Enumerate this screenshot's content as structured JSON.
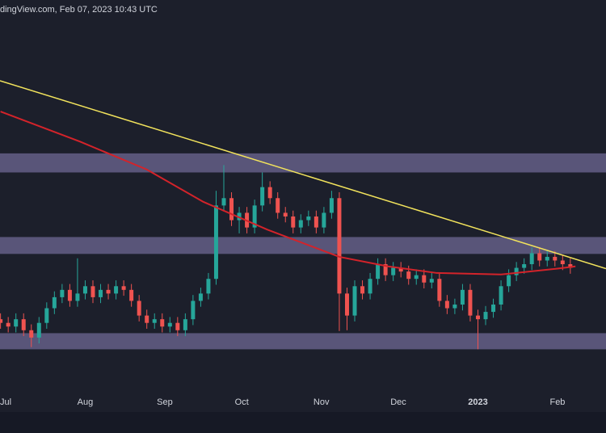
{
  "header": {
    "text": "dingView.com, Feb 07, 2023 10:43 UTC"
  },
  "chart_data": {
    "type": "candlestick",
    "background": "#1c1f2b",
    "up_color": "#26a69a",
    "down_color": "#ef5350",
    "xlim": [
      -2.2,
      233.9
    ],
    "ylim": [
      0.245,
      0.78
    ],
    "xticks": [
      {
        "value": 0,
        "label": "Jul"
      },
      {
        "value": 31,
        "label": "Aug"
      },
      {
        "value": 62,
        "label": "Sep"
      },
      {
        "value": 92,
        "label": "Oct"
      },
      {
        "value": 123,
        "label": "Nov"
      },
      {
        "value": 153,
        "label": "Dec"
      },
      {
        "value": 184,
        "label": "2023"
      },
      {
        "value": 215,
        "label": "Feb"
      }
    ],
    "x": [
      -2,
      1,
      4,
      7,
      10,
      13,
      16,
      19,
      22,
      25,
      28,
      31,
      34,
      37,
      40,
      43,
      46,
      49,
      52,
      55,
      58,
      61,
      64,
      67,
      70,
      73,
      76,
      79,
      82,
      85,
      88,
      91,
      94,
      97,
      100,
      103,
      106,
      109,
      112,
      115,
      118,
      121,
      124,
      127,
      130,
      133,
      136,
      139,
      142,
      145,
      148,
      151,
      154,
      157,
      160,
      163,
      166,
      169,
      172,
      175,
      178,
      181,
      184,
      187,
      190,
      193,
      196,
      199,
      202,
      205,
      208,
      211,
      214,
      217,
      220
    ],
    "open": [
      0.345,
      0.34,
      0.335,
      0.345,
      0.33,
      0.32,
      0.34,
      0.36,
      0.375,
      0.385,
      0.37,
      0.38,
      0.39,
      0.375,
      0.385,
      0.38,
      0.39,
      0.385,
      0.37,
      0.35,
      0.34,
      0.345,
      0.335,
      0.34,
      0.33,
      0.345,
      0.37,
      0.38,
      0.4,
      0.5,
      0.51,
      0.48,
      0.49,
      0.47,
      0.5,
      0.525,
      0.51,
      0.49,
      0.485,
      0.47,
      0.48,
      0.485,
      0.47,
      0.49,
      0.51,
      0.38,
      0.35,
      0.39,
      0.38,
      0.4,
      0.42,
      0.405,
      0.415,
      0.41,
      0.4,
      0.405,
      0.395,
      0.4,
      0.37,
      0.36,
      0.365,
      0.385,
      0.35,
      0.345,
      0.355,
      0.365,
      0.39,
      0.405,
      0.415,
      0.42,
      0.435,
      0.425,
      0.43,
      0.425,
      0.42
    ],
    "high": [
      0.353,
      0.348,
      0.353,
      0.353,
      0.338,
      0.348,
      0.368,
      0.383,
      0.393,
      0.393,
      0.428,
      0.398,
      0.398,
      0.393,
      0.393,
      0.398,
      0.398,
      0.393,
      0.378,
      0.358,
      0.353,
      0.353,
      0.348,
      0.348,
      0.353,
      0.378,
      0.388,
      0.408,
      0.52,
      0.555,
      0.518,
      0.498,
      0.498,
      0.508,
      0.545,
      0.533,
      0.518,
      0.498,
      0.493,
      0.488,
      0.493,
      0.493,
      0.498,
      0.52,
      0.518,
      0.388,
      0.398,
      0.398,
      0.408,
      0.428,
      0.428,
      0.423,
      0.423,
      0.418,
      0.413,
      0.413,
      0.408,
      0.408,
      0.378,
      0.373,
      0.393,
      0.393,
      0.358,
      0.363,
      0.373,
      0.398,
      0.413,
      0.423,
      0.428,
      0.443,
      0.443,
      0.438,
      0.438,
      0.433,
      0.428
    ],
    "low": [
      0.332,
      0.327,
      0.327,
      0.322,
      0.307,
      0.312,
      0.332,
      0.352,
      0.367,
      0.362,
      0.362,
      0.372,
      0.367,
      0.367,
      0.372,
      0.372,
      0.377,
      0.362,
      0.342,
      0.332,
      0.332,
      0.327,
      0.327,
      0.322,
      0.322,
      0.337,
      0.362,
      0.372,
      0.392,
      0.492,
      0.472,
      0.462,
      0.462,
      0.462,
      0.492,
      0.502,
      0.482,
      0.477,
      0.462,
      0.462,
      0.472,
      0.462,
      0.462,
      0.482,
      0.329,
      0.33,
      0.342,
      0.372,
      0.372,
      0.392,
      0.397,
      0.397,
      0.402,
      0.392,
      0.392,
      0.387,
      0.387,
      0.362,
      0.352,
      0.352,
      0.357,
      0.342,
      0.304,
      0.337,
      0.347,
      0.357,
      0.382,
      0.397,
      0.407,
      0.412,
      0.417,
      0.417,
      0.417,
      0.412,
      0.407
    ],
    "close": [
      0.34,
      0.335,
      0.345,
      0.33,
      0.32,
      0.34,
      0.36,
      0.375,
      0.385,
      0.37,
      0.38,
      0.39,
      0.375,
      0.385,
      0.38,
      0.39,
      0.385,
      0.37,
      0.35,
      0.34,
      0.345,
      0.335,
      0.34,
      0.33,
      0.345,
      0.37,
      0.38,
      0.4,
      0.5,
      0.51,
      0.48,
      0.49,
      0.47,
      0.5,
      0.525,
      0.51,
      0.49,
      0.485,
      0.47,
      0.48,
      0.485,
      0.47,
      0.49,
      0.51,
      0.38,
      0.35,
      0.39,
      0.38,
      0.4,
      0.42,
      0.405,
      0.415,
      0.41,
      0.4,
      0.405,
      0.395,
      0.4,
      0.37,
      0.36,
      0.365,
      0.385,
      0.35,
      0.345,
      0.355,
      0.365,
      0.39,
      0.405,
      0.415,
      0.42,
      0.435,
      0.425,
      0.43,
      0.425,
      0.42,
      0.415
    ],
    "zones": [
      {
        "low": 0.545,
        "high": 0.571,
        "color": "#6d6894"
      },
      {
        "low": 0.434,
        "high": 0.457,
        "color": "#6d6894"
      },
      {
        "low": 0.304,
        "high": 0.326,
        "color": "#6d6894"
      }
    ],
    "moving_average": {
      "color": "#d3232a",
      "x": [
        -2,
        29,
        55,
        77,
        102,
        130,
        149,
        168,
        193,
        215,
        222
      ],
      "values": [
        0.628,
        0.587,
        0.549,
        0.505,
        0.467,
        0.43,
        0.417,
        0.408,
        0.406,
        0.414,
        0.417
      ]
    },
    "trendline": {
      "color": "#f2e35c",
      "x": [
        -2.2,
        233.9
      ],
      "values": [
        0.67,
        0.414
      ]
    }
  }
}
